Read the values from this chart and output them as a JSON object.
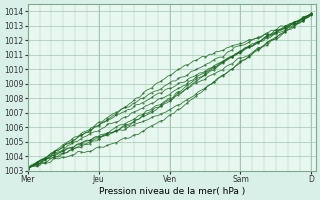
{
  "background_color": "#d8f0e8",
  "plot_bg_color": "#e8f8f0",
  "grid_color": "#a0c8b0",
  "line_color": "#1a6620",
  "xlabel": "Pression niveau de la mer( hPa )",
  "ylabel": "",
  "ylim": [
    1003,
    1014.5
  ],
  "yticks": [
    1003,
    1004,
    1005,
    1006,
    1007,
    1008,
    1009,
    1010,
    1011,
    1012,
    1013,
    1014
  ],
  "xtick_labels": [
    "Mer",
    "Jeu",
    "Ven",
    "Sam",
    "D"
  ],
  "xtick_positions": [
    0,
    48,
    96,
    144,
    192
  ],
  "total_points": 193,
  "num_lines": 9
}
